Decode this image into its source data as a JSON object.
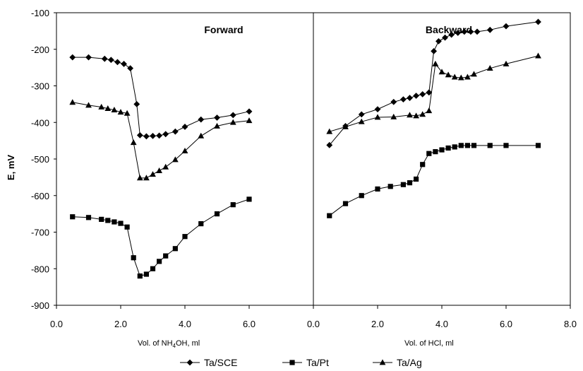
{
  "chart_data": {
    "type": "line",
    "ylabel": "E, mV",
    "ylim": [
      -900,
      -100
    ],
    "yticks": [
      "-100",
      "-200",
      "-300",
      "-400",
      "-500",
      "-600",
      "-700",
      "-800",
      "-900"
    ],
    "grid": false,
    "legend_position": "bottom",
    "legend": [
      "Ta/SCE",
      "Ta/Pt",
      "Ta/Ag"
    ],
    "panels": [
      {
        "title": "Forward",
        "xlabel_parts": [
          "Vol. of NH",
          "4",
          "OH, ml"
        ],
        "xlim": [
          0,
          8
        ],
        "xticks": [
          "0.0",
          "2.0",
          "4.0",
          "6.0"
        ],
        "series": [
          {
            "name": "Ta/SCE",
            "marker": "diamond",
            "x": [
              0.5,
              1.0,
              1.5,
              1.7,
              1.9,
              2.1,
              2.3,
              2.5,
              2.6,
              2.8,
              3.0,
              3.2,
              3.4,
              3.7,
              4.0,
              4.5,
              5.0,
              5.5,
              6.0
            ],
            "y": [
              -222,
              -222,
              -226,
              -229,
              -235,
              -240,
              -252,
              -350,
              -435,
              -438,
              -437,
              -436,
              -432,
              -425,
              -412,
              -392,
              -387,
              -380,
              -370
            ]
          },
          {
            "name": "Ta/Pt",
            "marker": "square",
            "x": [
              0.5,
              1.0,
              1.4,
              1.6,
              1.8,
              2.0,
              2.2,
              2.4,
              2.6,
              2.8,
              3.0,
              3.2,
              3.4,
              3.7,
              4.0,
              4.5,
              5.0,
              5.5,
              6.0
            ],
            "y": [
              -658,
              -660,
              -665,
              -668,
              -672,
              -676,
              -686,
              -770,
              -820,
              -815,
              -800,
              -780,
              -765,
              -745,
              -712,
              -677,
              -650,
              -625,
              -610
            ]
          },
          {
            "name": "Ta/Ag",
            "marker": "triangle",
            "x": [
              0.5,
              1.0,
              1.4,
              1.6,
              1.8,
              2.0,
              2.2,
              2.4,
              2.6,
              2.8,
              3.0,
              3.2,
              3.4,
              3.7,
              4.0,
              4.5,
              5.0,
              5.5,
              6.0
            ],
            "y": [
              -345,
              -353,
              -358,
              -362,
              -366,
              -372,
              -375,
              -455,
              -552,
              -552,
              -542,
              -532,
              -522,
              -502,
              -478,
              -437,
              -410,
              -400,
              -395
            ]
          }
        ]
      },
      {
        "title": "Backward",
        "xlabel_parts": [
          "Vol. of HCl, ml"
        ],
        "xlim": [
          0,
          8
        ],
        "xticks": [
          "0.0",
          "2.0",
          "4.0",
          "6.0",
          "8.0"
        ],
        "series": [
          {
            "name": "Ta/SCE",
            "marker": "diamond",
            "x": [
              0.5,
              1.0,
              1.5,
              2.0,
              2.5,
              2.8,
              3.0,
              3.2,
              3.4,
              3.6,
              3.75,
              3.9,
              4.1,
              4.3,
              4.5,
              4.7,
              4.9,
              5.1,
              5.5,
              6.0,
              7.0
            ],
            "y": [
              -462,
              -410,
              -378,
              -364,
              -344,
              -337,
              -333,
              -327,
              -323,
              -318,
              -205,
              -178,
              -168,
              -160,
              -155,
              -152,
              -152,
              -152,
              -147,
              -137,
              -125
            ]
          },
          {
            "name": "Ta/Pt",
            "marker": "square",
            "x": [
              0.5,
              1.0,
              1.5,
              2.0,
              2.4,
              2.8,
              3.0,
              3.2,
              3.4,
              3.6,
              3.8,
              4.0,
              4.2,
              4.4,
              4.6,
              4.8,
              5.0,
              5.5,
              6.0,
              7.0
            ],
            "y": [
              -655,
              -622,
              -600,
              -582,
              -575,
              -570,
              -565,
              -555,
              -515,
              -485,
              -480,
              -475,
              -470,
              -467,
              -463,
              -463,
              -463,
              -463,
              -463,
              -463
            ]
          },
          {
            "name": "Ta/Ag",
            "marker": "triangle",
            "x": [
              0.5,
              1.0,
              1.5,
              2.0,
              2.5,
              3.0,
              3.2,
              3.4,
              3.6,
              3.8,
              4.0,
              4.2,
              4.4,
              4.6,
              4.8,
              5.0,
              5.5,
              6.0,
              7.0
            ],
            "y": [
              -425,
              -412,
              -398,
              -386,
              -385,
              -380,
              -382,
              -378,
              -368,
              -240,
              -262,
              -270,
              -276,
              -278,
              -276,
              -268,
              -252,
              -240,
              -218
            ]
          }
        ]
      }
    ]
  }
}
